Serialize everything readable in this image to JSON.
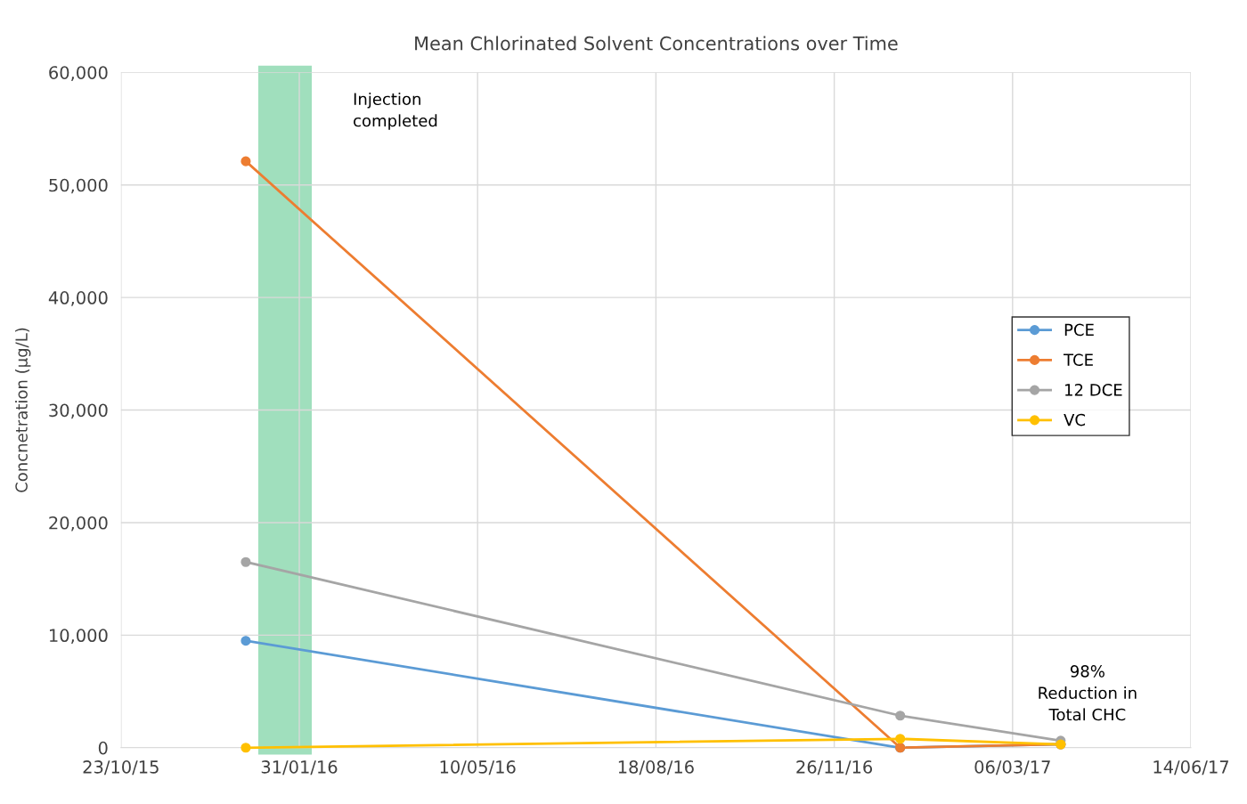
{
  "chart_data": {
    "type": "line",
    "title": "Mean Chlorinated Solvent Concentrations over Time",
    "ylabel": "Concnetration (µg/L)",
    "x": [
      "2016-01-01",
      "2017-01-02",
      "2017-04-02"
    ],
    "series": [
      {
        "name": "PCE",
        "color": "#5b9bd5",
        "values": [
          9500,
          0,
          300
        ]
      },
      {
        "name": "TCE",
        "color": "#ed7d31",
        "values": [
          52100,
          0,
          300
        ]
      },
      {
        "name": "12 DCE",
        "color": "#a5a5a5",
        "values": [
          16500,
          2850,
          630
        ]
      },
      {
        "name": "VC",
        "color": "#ffc000",
        "values": [
          0,
          790,
          300
        ]
      }
    ],
    "xlim": [
      "2015-10-23",
      "2017-06-14"
    ],
    "xticks": [
      {
        "value": "2015-10-23",
        "label": "23/10/15"
      },
      {
        "value": "2016-01-31",
        "label": "31/01/16"
      },
      {
        "value": "2016-05-10",
        "label": "10/05/16"
      },
      {
        "value": "2016-08-18",
        "label": "18/08/16"
      },
      {
        "value": "2016-11-26",
        "label": "26/11/16"
      },
      {
        "value": "2017-03-06",
        "label": "06/03/17"
      },
      {
        "value": "2017-06-14",
        "label": "14/06/17"
      }
    ],
    "ylim": [
      0,
      60000
    ],
    "yticks": [
      {
        "value": 0,
        "label": "0"
      },
      {
        "value": 10000,
        "label": "10,000"
      },
      {
        "value": 20000,
        "label": "20,000"
      },
      {
        "value": 30000,
        "label": "30,000"
      },
      {
        "value": 40000,
        "label": "40,000"
      },
      {
        "value": 50000,
        "label": "50,000"
      },
      {
        "value": 60000,
        "label": "60,000"
      }
    ],
    "bands": [
      {
        "axis": "x",
        "from": "2016-01-08",
        "to": "2016-02-07",
        "label": "Injection\ncompleted",
        "color": "#a0dfbd"
      }
    ],
    "annotations": [
      {
        "text": "98%\nReduction in\nTotal CHC",
        "x": "2017-04-02",
        "y": 630
      }
    ],
    "grid": true,
    "legend": "right",
    "marker": "circle",
    "line_style": "solid"
  }
}
